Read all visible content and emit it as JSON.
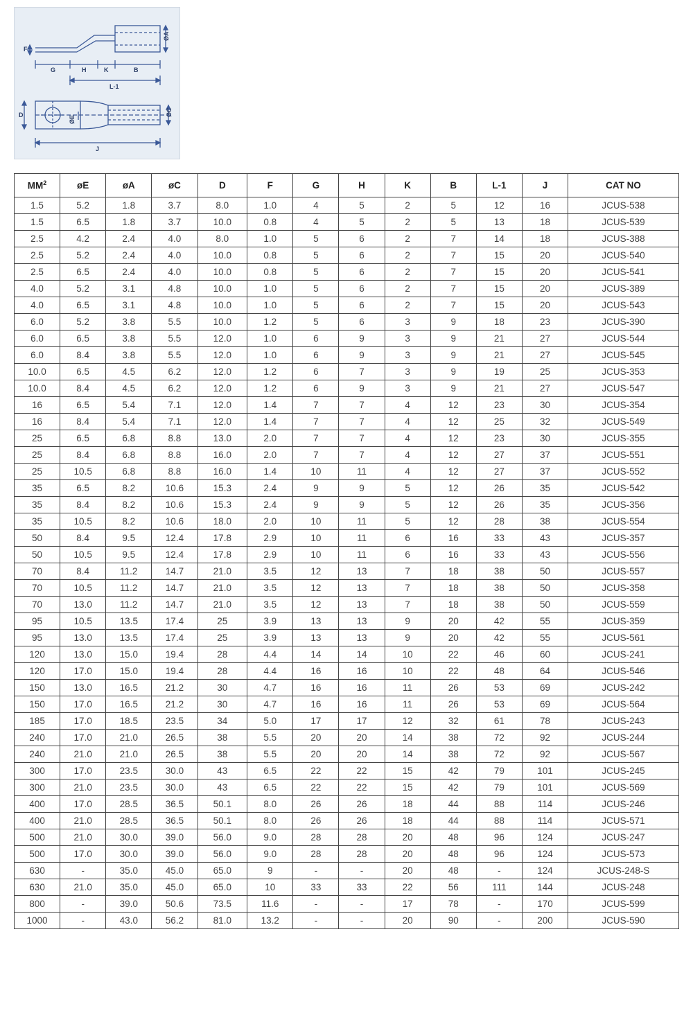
{
  "diagram": {
    "bg": "#e8eef5",
    "labels": {
      "F": "F",
      "G": "G",
      "H": "H",
      "K": "K",
      "B": "B",
      "L1": "L-1",
      "oA": "ØA",
      "D": "D",
      "oE": "ØE",
      "oC": "ØC",
      "J": "J"
    },
    "stroke": "#3b5998",
    "dash": "4 3"
  },
  "table": {
    "columns": [
      "MM²",
      "øE",
      "øA",
      "øC",
      "D",
      "F",
      "G",
      "H",
      "K",
      "B",
      "L-1",
      "J",
      "CAT NO"
    ],
    "col_widths": [
      "6%",
      "6%",
      "6%",
      "6%",
      "6.5%",
      "6%",
      "6%",
      "6%",
      "6%",
      "6%",
      "6%",
      "6%",
      "14.5%"
    ],
    "header_bg": "#ffffff",
    "rows": [
      [
        "1.5",
        "5.2",
        "1.8",
        "3.7",
        "8.0",
        "1.0",
        "4",
        "5",
        "2",
        "5",
        "12",
        "16",
        "JCUS-538"
      ],
      [
        "1.5",
        "6.5",
        "1.8",
        "3.7",
        "10.0",
        "0.8",
        "4",
        "5",
        "2",
        "5",
        "13",
        "18",
        "JCUS-539"
      ],
      [
        "2.5",
        "4.2",
        "2.4",
        "4.0",
        "8.0",
        "1.0",
        "5",
        "6",
        "2",
        "7",
        "14",
        "18",
        "JCUS-388"
      ],
      [
        "2.5",
        "5.2",
        "2.4",
        "4.0",
        "10.0",
        "0.8",
        "5",
        "6",
        "2",
        "7",
        "15",
        "20",
        "JCUS-540"
      ],
      [
        "2.5",
        "6.5",
        "2.4",
        "4.0",
        "10.0",
        "0.8",
        "5",
        "6",
        "2",
        "7",
        "15",
        "20",
        "JCUS-541"
      ],
      [
        "4.0",
        "5.2",
        "3.1",
        "4.8",
        "10.0",
        "1.0",
        "5",
        "6",
        "2",
        "7",
        "15",
        "20",
        "JCUS-389"
      ],
      [
        "4.0",
        "6.5",
        "3.1",
        "4.8",
        "10.0",
        "1.0",
        "5",
        "6",
        "2",
        "7",
        "15",
        "20",
        "JCUS-543"
      ],
      [
        "6.0",
        "5.2",
        "3.8",
        "5.5",
        "10.0",
        "1.2",
        "5",
        "6",
        "3",
        "9",
        "18",
        "23",
        "JCUS-390"
      ],
      [
        "6.0",
        "6.5",
        "3.8",
        "5.5",
        "12.0",
        "1.0",
        "6",
        "9",
        "3",
        "9",
        "21",
        "27",
        "JCUS-544"
      ],
      [
        "6.0",
        "8.4",
        "3.8",
        "5.5",
        "12.0",
        "1.0",
        "6",
        "9",
        "3",
        "9",
        "21",
        "27",
        "JCUS-545"
      ],
      [
        "10.0",
        "6.5",
        "4.5",
        "6.2",
        "12.0",
        "1.2",
        "6",
        "7",
        "3",
        "9",
        "19",
        "25",
        "JCUS-353"
      ],
      [
        "10.0",
        "8.4",
        "4.5",
        "6.2",
        "12.0",
        "1.2",
        "6",
        "9",
        "3",
        "9",
        "21",
        "27",
        "JCUS-547"
      ],
      [
        "16",
        "6.5",
        "5.4",
        "7.1",
        "12.0",
        "1.4",
        "7",
        "7",
        "4",
        "12",
        "23",
        "30",
        "JCUS-354"
      ],
      [
        "16",
        "8.4",
        "5.4",
        "7.1",
        "12.0",
        "1.4",
        "7",
        "7",
        "4",
        "12",
        "25",
        "32",
        "JCUS-549"
      ],
      [
        "25",
        "6.5",
        "6.8",
        "8.8",
        "13.0",
        "2.0",
        "7",
        "7",
        "4",
        "12",
        "23",
        "30",
        "JCUS-355"
      ],
      [
        "25",
        "8.4",
        "6.8",
        "8.8",
        "16.0",
        "2.0",
        "7",
        "7",
        "4",
        "12",
        "27",
        "37",
        "JCUS-551"
      ],
      [
        "25",
        "10.5",
        "6.8",
        "8.8",
        "16.0",
        "1.4",
        "10",
        "11",
        "4",
        "12",
        "27",
        "37",
        "JCUS-552"
      ],
      [
        "35",
        "6.5",
        "8.2",
        "10.6",
        "15.3",
        "2.4",
        "9",
        "9",
        "5",
        "12",
        "26",
        "35",
        "JCUS-542"
      ],
      [
        "35",
        "8.4",
        "8.2",
        "10.6",
        "15.3",
        "2.4",
        "9",
        "9",
        "5",
        "12",
        "26",
        "35",
        "JCUS-356"
      ],
      [
        "35",
        "10.5",
        "8.2",
        "10.6",
        "18.0",
        "2.0",
        "10",
        "11",
        "5",
        "12",
        "28",
        "38",
        "JCUS-554"
      ],
      [
        "50",
        "8.4",
        "9.5",
        "12.4",
        "17.8",
        "2.9",
        "10",
        "11",
        "6",
        "16",
        "33",
        "43",
        "JCUS-357"
      ],
      [
        "50",
        "10.5",
        "9.5",
        "12.4",
        "17.8",
        "2.9",
        "10",
        "11",
        "6",
        "16",
        "33",
        "43",
        "JCUS-556"
      ],
      [
        "70",
        "8.4",
        "11.2",
        "14.7",
        "21.0",
        "3.5",
        "12",
        "13",
        "7",
        "18",
        "38",
        "50",
        "JCUS-557"
      ],
      [
        "70",
        "10.5",
        "11.2",
        "14.7",
        "21.0",
        "3.5",
        "12",
        "13",
        "7",
        "18",
        "38",
        "50",
        "JCUS-358"
      ],
      [
        "70",
        "13.0",
        "11.2",
        "14.7",
        "21.0",
        "3.5",
        "12",
        "13",
        "7",
        "18",
        "38",
        "50",
        "JCUS-559"
      ],
      [
        "95",
        "10.5",
        "13.5",
        "17.4",
        "25",
        "3.9",
        "13",
        "13",
        "9",
        "20",
        "42",
        "55",
        "JCUS-359"
      ],
      [
        "95",
        "13.0",
        "13.5",
        "17.4",
        "25",
        "3.9",
        "13",
        "13",
        "9",
        "20",
        "42",
        "55",
        "JCUS-561"
      ],
      [
        "120",
        "13.0",
        "15.0",
        "19.4",
        "28",
        "4.4",
        "14",
        "14",
        "10",
        "22",
        "46",
        "60",
        "JCUS-241"
      ],
      [
        "120",
        "17.0",
        "15.0",
        "19.4",
        "28",
        "4.4",
        "16",
        "16",
        "10",
        "22",
        "48",
        "64",
        "JCUS-546"
      ],
      [
        "150",
        "13.0",
        "16.5",
        "21.2",
        "30",
        "4.7",
        "16",
        "16",
        "11",
        "26",
        "53",
        "69",
        "JCUS-242"
      ],
      [
        "150",
        "17.0",
        "16.5",
        "21.2",
        "30",
        "4.7",
        "16",
        "16",
        "11",
        "26",
        "53",
        "69",
        "JCUS-564"
      ],
      [
        "185",
        "17.0",
        "18.5",
        "23.5",
        "34",
        "5.0",
        "17",
        "17",
        "12",
        "32",
        "61",
        "78",
        "JCUS-243"
      ],
      [
        "240",
        "17.0",
        "21.0",
        "26.5",
        "38",
        "5.5",
        "20",
        "20",
        "14",
        "38",
        "72",
        "92",
        "JCUS-244"
      ],
      [
        "240",
        "21.0",
        "21.0",
        "26.5",
        "38",
        "5.5",
        "20",
        "20",
        "14",
        "38",
        "72",
        "92",
        "JCUS-567"
      ],
      [
        "300",
        "17.0",
        "23.5",
        "30.0",
        "43",
        "6.5",
        "22",
        "22",
        "15",
        "42",
        "79",
        "101",
        "JCUS-245"
      ],
      [
        "300",
        "21.0",
        "23.5",
        "30.0",
        "43",
        "6.5",
        "22",
        "22",
        "15",
        "42",
        "79",
        "101",
        "JCUS-569"
      ],
      [
        "400",
        "17.0",
        "28.5",
        "36.5",
        "50.1",
        "8.0",
        "26",
        "26",
        "18",
        "44",
        "88",
        "114",
        "JCUS-246"
      ],
      [
        "400",
        "21.0",
        "28.5",
        "36.5",
        "50.1",
        "8.0",
        "26",
        "26",
        "18",
        "44",
        "88",
        "114",
        "JCUS-571"
      ],
      [
        "500",
        "21.0",
        "30.0",
        "39.0",
        "56.0",
        "9.0",
        "28",
        "28",
        "20",
        "48",
        "96",
        "124",
        "JCUS-247"
      ],
      [
        "500",
        "17.0",
        "30.0",
        "39.0",
        "56.0",
        "9.0",
        "28",
        "28",
        "20",
        "48",
        "96",
        "124",
        "JCUS-573"
      ],
      [
        "630",
        "-",
        "35.0",
        "45.0",
        "65.0",
        "9",
        "-",
        "-",
        "20",
        "48",
        "-",
        "124",
        "JCUS-248-S"
      ],
      [
        "630",
        "21.0",
        "35.0",
        "45.0",
        "65.0",
        "10",
        "33",
        "33",
        "22",
        "56",
        "111",
        "144",
        "JCUS-248"
      ],
      [
        "800",
        "-",
        "39.0",
        "50.6",
        "73.5",
        "11.6",
        "-",
        "-",
        "17",
        "78",
        "-",
        "170",
        "JCUS-599"
      ],
      [
        "1000",
        "-",
        "43.0",
        "56.2",
        "81.0",
        "13.2",
        "-",
        "-",
        "20",
        "90",
        "-",
        "200",
        "JCUS-590"
      ]
    ]
  }
}
